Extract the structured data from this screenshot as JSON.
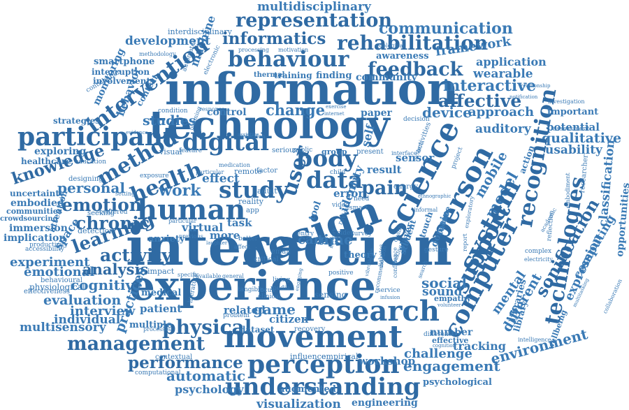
{
  "colors": {
    "primary": "#3a7ab5",
    "dark": "#2f6aa3",
    "light": "#6a9fd0",
    "background": "#ffffff"
  },
  "words": [
    {
      "text": "multidisciplinary"
    },
    {
      "text": "representation"
    },
    {
      "text": "communication"
    },
    {
      "text": "interdisciplinary"
    },
    {
      "text": "informatics"
    },
    {
      "text": "rehabilitation"
    },
    {
      "text": "development"
    },
    {
      "text": "framework"
    },
    {
      "text": "behaviour"
    },
    {
      "text": "feedback"
    },
    {
      "text": "application"
    },
    {
      "text": "smartphone"
    },
    {
      "text": "machine"
    },
    {
      "text": "intervention"
    },
    {
      "text": "information"
    },
    {
      "text": "interactive"
    },
    {
      "text": "affective"
    },
    {
      "text": "wearable"
    },
    {
      "text": "behavior"
    },
    {
      "text": "technology"
    },
    {
      "text": "change"
    },
    {
      "text": "approach"
    },
    {
      "text": "device"
    },
    {
      "text": "paper"
    },
    {
      "text": "participant"
    },
    {
      "text": "studies"
    },
    {
      "text": "auditory"
    },
    {
      "text": "potential"
    },
    {
      "text": "qualitative"
    },
    {
      "text": "usability"
    },
    {
      "text": "knowledge"
    },
    {
      "text": "method"
    },
    {
      "text": "digital"
    },
    {
      "text": "body"
    },
    {
      "text": "health"
    },
    {
      "text": "study"
    },
    {
      "text": "data"
    },
    {
      "text": "user"
    },
    {
      "text": "science"
    },
    {
      "text": "person"
    },
    {
      "text": "mobile"
    },
    {
      "text": "model"
    },
    {
      "text": "system"
    },
    {
      "text": "recognition"
    },
    {
      "text": "technologies"
    },
    {
      "text": "classification"
    },
    {
      "text": "pain"
    },
    {
      "text": "personal"
    },
    {
      "text": "emotion"
    },
    {
      "text": "human"
    },
    {
      "text": "design"
    },
    {
      "text": "support"
    },
    {
      "text": "computer"
    },
    {
      "text": "chronic"
    },
    {
      "text": "work"
    },
    {
      "text": "learning"
    },
    {
      "text": "activity"
    },
    {
      "text": "interaction"
    },
    {
      "text": "experiment"
    },
    {
      "text": "emotional"
    },
    {
      "text": "analysis"
    },
    {
      "text": "cognitive"
    },
    {
      "text": "experience"
    },
    {
      "text": "social"
    },
    {
      "text": "sound"
    },
    {
      "text": "evaluation"
    },
    {
      "text": "practices"
    },
    {
      "text": "research"
    },
    {
      "text": "mental"
    },
    {
      "text": "sonification"
    },
    {
      "text": "computing"
    },
    {
      "text": "expression"
    },
    {
      "text": "physical"
    },
    {
      "text": "interview"
    },
    {
      "text": "game"
    },
    {
      "text": "citizen"
    },
    {
      "text": "multisensory"
    },
    {
      "text": "management"
    },
    {
      "text": "movement"
    },
    {
      "text": "tracking"
    },
    {
      "text": "environment"
    },
    {
      "text": "performance"
    },
    {
      "text": "perception"
    },
    {
      "text": "challenge"
    },
    {
      "text": "automatic"
    },
    {
      "text": "engagement"
    },
    {
      "text": "understanding"
    },
    {
      "text": "psychology"
    },
    {
      "text": "visualization"
    },
    {
      "text": "engineering"
    },
    {
      "text": "psychological"
    },
    {
      "text": "different"
    },
    {
      "text": "immersion"
    },
    {
      "text": "implication"
    },
    {
      "text": "uncertainty"
    },
    {
      "text": "embodied"
    },
    {
      "text": "communities"
    },
    {
      "text": "crowdsourcing"
    },
    {
      "text": "healthcare"
    },
    {
      "text": "strategies"
    },
    {
      "text": "exploring"
    },
    {
      "text": "interruption"
    },
    {
      "text": "involvement"
    },
    {
      "text": "effect"
    },
    {
      "text": "virtual"
    },
    {
      "text": "task"
    },
    {
      "text": "more"
    },
    {
      "text": "care"
    },
    {
      "text": "time"
    },
    {
      "text": "error"
    },
    {
      "text": "result"
    },
    {
      "text": "sensor"
    },
    {
      "text": "self"
    },
    {
      "text": "related"
    },
    {
      "text": "dataset"
    },
    {
      "text": "patient"
    },
    {
      "text": "medical"
    },
    {
      "text": "individual"
    },
    {
      "text": "multiple"
    },
    {
      "text": "evidence"
    },
    {
      "text": "thermal"
    },
    {
      "text": "training"
    },
    {
      "text": "finding"
    },
    {
      "text": "community"
    },
    {
      "text": "awareness"
    },
    {
      "text": "attention"
    },
    {
      "text": "important"
    },
    {
      "text": "investigation"
    },
    {
      "text": "assessment"
    },
    {
      "text": "researcher"
    },
    {
      "text": "opportunities"
    },
    {
      "text": "wellbeing"
    },
    {
      "text": "library"
    },
    {
      "text": "libraries"
    },
    {
      "text": "workshop"
    },
    {
      "text": "theory"
    },
    {
      "text": "sensing"
    },
    {
      "text": "impact"
    },
    {
      "text": "anxiety"
    },
    {
      "text": "reality"
    },
    {
      "text": "effective"
    },
    {
      "text": "number"
    },
    {
      "text": "empathy"
    },
    {
      "text": "augmented"
    },
    {
      "text": "influence"
    },
    {
      "text": "empirical"
    },
    {
      "text": "detection"
    },
    {
      "text": "seeking"
    },
    {
      "text": "centered"
    },
    {
      "text": "designing"
    },
    {
      "text": "education"
    },
    {
      "text": "physiological"
    },
    {
      "text": "behavioural"
    },
    {
      "text": "effectiveness"
    },
    {
      "text": "productivity"
    },
    {
      "text": "accessibility"
    },
    {
      "text": "contextual"
    },
    {
      "text": "computational"
    },
    {
      "text": "processes"
    },
    {
      "text": "critical"
    },
    {
      "text": "problem"
    },
    {
      "text": "tangible"
    },
    {
      "text": "literature"
    },
    {
      "text": "recovery"
    },
    {
      "text": "monitoring"
    },
    {
      "text": "context"
    },
    {
      "text": "condition"
    },
    {
      "text": "contribution"
    },
    {
      "text": "methodology"
    },
    {
      "text": "ecological"
    },
    {
      "text": "processing"
    },
    {
      "text": "motivation"
    },
    {
      "text": "electronic"
    },
    {
      "text": "automated"
    },
    {
      "text": "notification"
    },
    {
      "text": "relationship"
    },
    {
      "text": "collaboration"
    },
    {
      "text": "multitasking"
    },
    {
      "text": "intelligence"
    },
    {
      "text": "difference"
    },
    {
      "text": "cognition"
    },
    {
      "text": "volunteer"
    },
    {
      "text": "embodiment"
    },
    {
      "text": "reflection"
    },
    {
      "text": "electricity"
    },
    {
      "text": "complex"
    },
    {
      "text": "academic"
    },
    {
      "text": "domain"
    },
    {
      "text": "future"
    },
    {
      "text": "touch"
    },
    {
      "text": "player"
    },
    {
      "text": "student"
    },
    {
      "text": "gesture"
    },
    {
      "text": "survey"
    },
    {
      "text": "entry"
    },
    {
      "text": "older"
    },
    {
      "text": "adult"
    },
    {
      "text": "remote"
    },
    {
      "text": "factor"
    },
    {
      "text": "visual"
    },
    {
      "text": "group"
    },
    {
      "text": "present"
    },
    {
      "text": "energy"
    },
    {
      "text": "control"
    },
    {
      "text": "response"
    },
    {
      "text": "planning"
    },
    {
      "text": "exercise"
    },
    {
      "text": "internet"
    },
    {
      "text": "decision"
    },
    {
      "text": "activities"
    },
    {
      "text": "project"
    },
    {
      "text": "action"
    },
    {
      "text": "serious"
    },
    {
      "text": "public"
    },
    {
      "text": "feature"
    },
    {
      "text": "child"
    },
    {
      "text": "tool"
    },
    {
      "text": "need"
    },
    {
      "text": "review"
    },
    {
      "text": "smart"
    },
    {
      "text": "living"
    },
    {
      "text": "media"
    },
    {
      "text": "email"
    },
    {
      "text": "focus"
    },
    {
      "text": "clinical"
    },
    {
      "text": "service"
    },
    {
      "text": "infusion"
    },
    {
      "text": "identity"
    },
    {
      "text": "video"
    },
    {
      "text": "app"
    },
    {
      "text": "affect"
    },
    {
      "text": "better"
    },
    {
      "text": "space"
    },
    {
      "text": "interface"
    },
    {
      "text": "quality"
    },
    {
      "text": "exploratory"
    },
    {
      "text": "system"
    },
    {
      "text": "ethnographic"
    },
    {
      "text": "informal"
    },
    {
      "text": "report"
    },
    {
      "text": "making"
    },
    {
      "text": "confidence"
    },
    {
      "text": "exposure"
    },
    {
      "text": "selection"
    },
    {
      "text": "assistive"
    },
    {
      "text": "particular"
    },
    {
      "text": "setting"
    },
    {
      "text": "diabetes"
    },
    {
      "text": "medication"
    },
    {
      "text": "particular"
    },
    {
      "text": "previous"
    },
    {
      "text": "laughter"
    },
    {
      "text": "general"
    },
    {
      "text": "specific"
    },
    {
      "text": "available"
    },
    {
      "text": "network"
    },
    {
      "text": "recommendation"
    },
    {
      "text": "vibrotactile"
    },
    {
      "text": "engaging"
    },
    {
      "text": "positive"
    },
    {
      "text": "search"
    },
    {
      "text": "dynamic"
    }
  ]
}
